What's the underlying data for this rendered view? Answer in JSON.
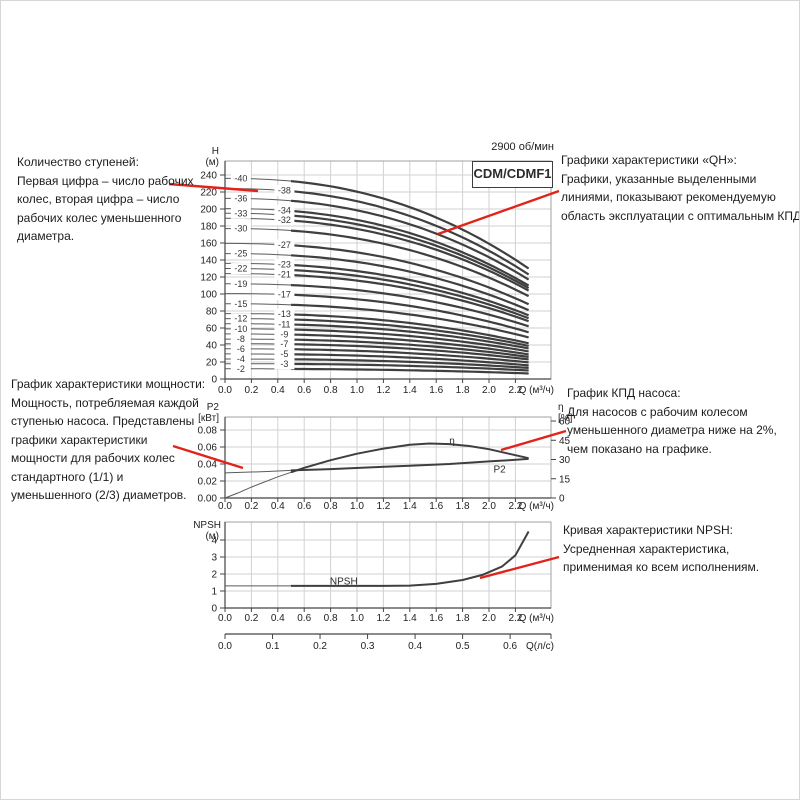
{
  "figure": {
    "rpm_label": "2900 об/мин",
    "model_label": "CDM/CDMF1"
  },
  "colors": {
    "red": "#e2231a",
    "grid": "#d2d2d2",
    "frame": "#a0a0a0",
    "axis": "#444444",
    "curve_thin": "#5a5a5a",
    "curve_bold": "#3f3f3f",
    "tick_text": "#222222"
  },
  "annotations": {
    "stages": {
      "title": "Количество ступеней:",
      "body": "Первая цифра – число рабочих колес, вторая цифра – число рабочих колес уменьшенного диаметра.",
      "line": [
        168,
        183,
        257,
        190
      ]
    },
    "power": {
      "title": "График характеристики мощности:",
      "body": "Мощность, потребляемая каждой ступенью насоса. Представлены графики характеристики мощности для рабочих колес стандартного (1/1) и уменьшенного (2/3) диаметров.",
      "line": [
        172,
        445,
        242,
        467
      ]
    },
    "qh": {
      "title": "Графики характеристики «QH»:",
      "body": "Графики, указанные выделенными линиями, показывают рекомендуемую область эксплуатации с оптимальным КПД.",
      "line": [
        558,
        190,
        437,
        233
      ]
    },
    "eff": {
      "title": "График КПД насоса:",
      "body": "Для насосов с рабочим колесом уменьшенного диаметра ниже на 2%, чем показано на графике.",
      "line": [
        565,
        430,
        500,
        449
      ]
    },
    "npsh": {
      "title": "Кривая характеристики NPSH:",
      "body": "Усредненная характеристика, применимая ко всем исполнениям.",
      "line": [
        558,
        556,
        479,
        577
      ]
    }
  },
  "chart_data": [
    {
      "id": "qh",
      "type": "line",
      "title": "CDM/CDMF1",
      "rpm": "2900 об/мин",
      "xlabel": "Q (м³/ч)",
      "ylabel": [
        "H",
        "(м)"
      ],
      "xlim": [
        0,
        2.47
      ],
      "ylim": [
        0,
        256
      ],
      "grid": true,
      "xticks": [
        "0.0",
        "0.2",
        "0.4",
        "0.6",
        "0.8",
        "1.0",
        "1.2",
        "1.4",
        "1.6",
        "1.8",
        "2.0",
        "2.2"
      ],
      "yticks": [
        0,
        20,
        40,
        60,
        80,
        100,
        120,
        140,
        160,
        180,
        200,
        220,
        240
      ],
      "q_end": 2.3,
      "recommended_range_q": [
        0.5,
        2.3
      ],
      "curves": [
        {
          "label": "-2",
          "stages": 2,
          "h0": 12,
          "h_end": 6.5,
          "col": "a"
        },
        {
          "label": "-3",
          "stages": 3,
          "h0": 18,
          "h_end": 10,
          "col": "b"
        },
        {
          "label": "-4",
          "stages": 4,
          "h0": 23.5,
          "h_end": 13,
          "col": "a"
        },
        {
          "label": "-5",
          "stages": 5,
          "h0": 29.5,
          "h_end": 16,
          "col": "b"
        },
        {
          "label": "-6",
          "stages": 6,
          "h0": 35.5,
          "h_end": 19.5,
          "col": "a"
        },
        {
          "label": "-7",
          "stages": 7,
          "h0": 41.5,
          "h_end": 23,
          "col": "b"
        },
        {
          "label": "-8",
          "stages": 8,
          "h0": 47,
          "h_end": 26,
          "col": "a"
        },
        {
          "label": "-9",
          "stages": 9,
          "h0": 53,
          "h_end": 29,
          "col": "b"
        },
        {
          "label": "-10",
          "stages": 10,
          "h0": 59,
          "h_end": 32.5,
          "col": "a"
        },
        {
          "label": "-11",
          "stages": 11,
          "h0": 65,
          "h_end": 36,
          "col": "b"
        },
        {
          "label": "-12",
          "stages": 12,
          "h0": 71,
          "h_end": 39,
          "col": "a"
        },
        {
          "label": "-13",
          "stages": 13,
          "h0": 77,
          "h_end": 42,
          "col": "b"
        },
        {
          "label": "-15",
          "stages": 15,
          "h0": 88.5,
          "h_end": 49,
          "col": "a"
        },
        {
          "label": "-17",
          "stages": 17,
          "h0": 100.5,
          "h_end": 55,
          "col": "b"
        },
        {
          "label": "-19",
          "stages": 19,
          "h0": 112,
          "h_end": 62,
          "col": "a"
        },
        {
          "label": "-21",
          "stages": 21,
          "h0": 124,
          "h_end": 68,
          "col": "b"
        },
        {
          "label": "-22",
          "stages": 22,
          "h0": 130,
          "h_end": 71.5,
          "col": "a"
        },
        {
          "label": "-23",
          "stages": 23,
          "h0": 136,
          "h_end": 75,
          "col": "b"
        },
        {
          "label": "-25",
          "stages": 25,
          "h0": 147.5,
          "h_end": 81,
          "col": "a"
        },
        {
          "label": "-27",
          "stages": 27,
          "h0": 159.5,
          "h_end": 88,
          "col": "b"
        },
        {
          "label": "-30",
          "stages": 30,
          "h0": 177,
          "h_end": 97.5,
          "col": "a"
        },
        {
          "label": "-32",
          "stages": 32,
          "h0": 189,
          "h_end": 104,
          "col": "b"
        },
        {
          "label": "-33",
          "stages": 33,
          "h0": 195,
          "h_end": 107,
          "col": "a"
        },
        {
          "label": "-34",
          "stages": 34,
          "h0": 200.5,
          "h_end": 110,
          "col": "b"
        },
        {
          "label": "-36",
          "stages": 36,
          "h0": 212.5,
          "h_end": 117,
          "col": "a"
        },
        {
          "label": "-38",
          "stages": 38,
          "h0": 224,
          "h_end": 123,
          "col": "b"
        },
        {
          "label": "-40",
          "stages": 40,
          "h0": 236,
          "h_end": 130,
          "col": "a"
        }
      ]
    },
    {
      "id": "power_eff",
      "type": "line",
      "xlabel": "Q (м³/ч)",
      "ylabel_left": [
        "P2",
        "[кВт]"
      ],
      "ylabel_right": [
        "η",
        "[%]"
      ],
      "xlim": [
        0,
        2.47
      ],
      "ylim_left": [
        0,
        0.095
      ],
      "ylim_right": [
        0,
        63
      ],
      "grid": true,
      "xticks": [
        "0.0",
        "0.2",
        "0.4",
        "0.6",
        "0.8",
        "1.0",
        "1.2",
        "1.4",
        "1.6",
        "1.8",
        "2.0",
        "2.2"
      ],
      "yticks_left": [
        "0.00",
        "0.02",
        "0.04",
        "0.06",
        "0.08"
      ],
      "yticks_right": [
        "0",
        "15",
        "30",
        "45",
        "60"
      ],
      "series": [
        {
          "name": "P2",
          "axis": "left",
          "unit": "кВт",
          "points": [
            [
              0,
              0.0295
            ],
            [
              0.3,
              0.031
            ],
            [
              0.5,
              0.0325
            ],
            [
              0.8,
              0.034
            ],
            [
              1.1,
              0.036
            ],
            [
              1.4,
              0.038
            ],
            [
              1.7,
              0.04
            ],
            [
              2.0,
              0.043
            ],
            [
              2.15,
              0.0445
            ],
            [
              2.3,
              0.046
            ]
          ],
          "label": {
            "text": "P2",
            "q": 2.08,
            "v": 0.0335
          }
        },
        {
          "name": "η",
          "axis": "right",
          "unit": "%",
          "points": [
            [
              0,
              0
            ],
            [
              0.1,
              4
            ],
            [
              0.2,
              8.5
            ],
            [
              0.4,
              16.5
            ],
            [
              0.6,
              23.5
            ],
            [
              0.8,
              29.5
            ],
            [
              1.0,
              34.5
            ],
            [
              1.2,
              38.5
            ],
            [
              1.4,
              41.5
            ],
            [
              1.55,
              42.5
            ],
            [
              1.7,
              42
            ],
            [
              1.85,
              40.5
            ],
            [
              2.0,
              38
            ],
            [
              2.15,
              34.5
            ],
            [
              2.3,
              31
            ]
          ],
          "label": {
            "text": "η",
            "q": 1.72,
            "v": 44.5
          }
        }
      ],
      "bold_from_q": 0.5
    },
    {
      "id": "npsh",
      "type": "line",
      "xlabel": "Q (м³/ч)",
      "xlabel2": "Q(л/с)",
      "ylabel": [
        "NPSH",
        "(м)"
      ],
      "xlim": [
        0,
        2.47
      ],
      "ylim": [
        0,
        5.06
      ],
      "grid": true,
      "xticks": [
        "0.0",
        "0.2",
        "0.4",
        "0.6",
        "0.8",
        "1.0",
        "1.2",
        "1.4",
        "1.6",
        "1.8",
        "2.0",
        "2.2"
      ],
      "yticks": [
        0,
        1,
        2,
        3,
        4
      ],
      "xticks2": [
        "0.0",
        "0.1",
        "0.2",
        "0.3",
        "0.4",
        "0.5",
        "0.6"
      ],
      "lps_to_m3h": 3.6,
      "points": [
        [
          0,
          1.3
        ],
        [
          0.3,
          1.3
        ],
        [
          0.6,
          1.3
        ],
        [
          0.9,
          1.3
        ],
        [
          1.2,
          1.3
        ],
        [
          1.4,
          1.32
        ],
        [
          1.6,
          1.42
        ],
        [
          1.8,
          1.65
        ],
        [
          1.95,
          1.95
        ],
        [
          2.1,
          2.45
        ],
        [
          2.2,
          3.1
        ],
        [
          2.3,
          4.5
        ]
      ],
      "label": {
        "text": "NPSH",
        "q": 0.9,
        "v": 1.55
      },
      "bold_from_q": 0.5
    }
  ]
}
